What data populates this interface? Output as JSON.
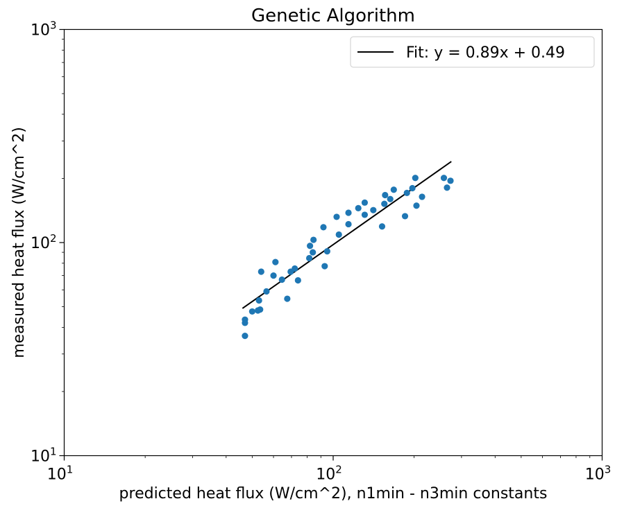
{
  "chart_data": {
    "type": "scatter",
    "title": "Genetic Algorithm",
    "xlabel": "predicted heat flux (W/cm^2), n1min - n3min constants",
    "ylabel": "measured heat flux (W/cm^2)",
    "xscale": "log",
    "yscale": "log",
    "xlim": [
      10,
      1000
    ],
    "ylim": [
      10,
      1000
    ],
    "x_ticks": [
      {
        "base": "10",
        "exp": "1",
        "value": 10
      },
      {
        "base": "10",
        "exp": "2",
        "value": 100
      },
      {
        "base": "10",
        "exp": "3",
        "value": 1000
      }
    ],
    "y_ticks": [
      {
        "base": "10",
        "exp": "1",
        "value": 10
      },
      {
        "base": "10",
        "exp": "2",
        "value": 100
      },
      {
        "base": "10",
        "exp": "3",
        "value": 1000
      }
    ],
    "grid": false,
    "legend_position": "top-right",
    "colors": {
      "points": "#1f77b4",
      "fit_line": "#000000"
    },
    "series": [
      {
        "type": "scatter",
        "points": [
          [
            47,
            42
          ],
          [
            47,
            43.5
          ],
          [
            47,
            36.5
          ],
          [
            50,
            47.5
          ],
          [
            52.5,
            48
          ],
          [
            53.5,
            48.5
          ],
          [
            53,
            53.5
          ],
          [
            54,
            73
          ],
          [
            56.5,
            59
          ],
          [
            60,
            70
          ],
          [
            61,
            81
          ],
          [
            64.5,
            67
          ],
          [
            67.5,
            54.5
          ],
          [
            69.5,
            73
          ],
          [
            72,
            75.5
          ],
          [
            74,
            66.5
          ],
          [
            81.5,
            84.5
          ],
          [
            82,
            96.5
          ],
          [
            84,
            90
          ],
          [
            84.5,
            103
          ],
          [
            92,
            118
          ],
          [
            93,
            77.5
          ],
          [
            95,
            91
          ],
          [
            103,
            132
          ],
          [
            105,
            109
          ],
          [
            114,
            122
          ],
          [
            114,
            138
          ],
          [
            124,
            145
          ],
          [
            131,
            135
          ],
          [
            131,
            154
          ],
          [
            141,
            142
          ],
          [
            152,
            119
          ],
          [
            155,
            152
          ],
          [
            156,
            167
          ],
          [
            163,
            160
          ],
          [
            168,
            177
          ],
          [
            185,
            133
          ],
          [
            188,
            171
          ],
          [
            197,
            180
          ],
          [
            202,
            201
          ],
          [
            204,
            149
          ],
          [
            214,
            164
          ],
          [
            258,
            201
          ],
          [
            265,
            181
          ],
          [
            273,
            195
          ]
        ]
      },
      {
        "type": "line",
        "name": "Fit: y = 0.89x + 0.49",
        "x": [
          46,
          275
        ],
        "y": [
          49.1,
          240
        ]
      }
    ]
  }
}
